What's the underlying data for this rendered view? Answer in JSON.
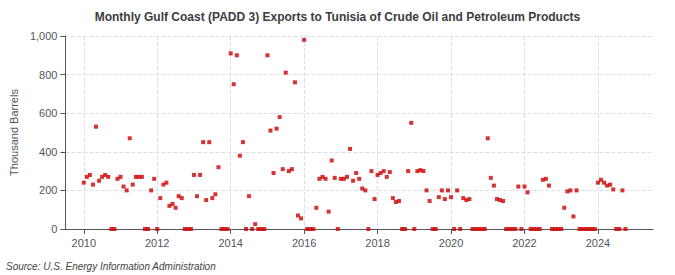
{
  "chart_data": {
    "type": "scatter",
    "title": "Monthly Gulf Coast (PADD 3) Exports to Tunisia of Crude Oil and Petroleum Products",
    "ylabel": "Thousand Barrels",
    "annotation": "Source: U.S. Energy Information Administration",
    "color": "#cc0000",
    "marker": "square",
    "grid": true,
    "ylim": [
      0,
      1000
    ],
    "yticks": [
      0,
      200,
      400,
      600,
      800,
      {
        "value": 1000,
        "label": "1,000"
      }
    ],
    "xlim": [
      2009.5,
      2025.5
    ],
    "xticks": [
      2010,
      2012,
      2014,
      2016,
      2018,
      2020,
      2022,
      2024
    ],
    "x": [
      2010.0,
      2010.083,
      2010.167,
      2010.25,
      2010.333,
      2010.417,
      2010.5,
      2010.583,
      2010.667,
      2010.75,
      2010.833,
      2010.917,
      2011.0,
      2011.083,
      2011.167,
      2011.25,
      2011.333,
      2011.417,
      2011.5,
      2011.583,
      2011.667,
      2011.75,
      2011.833,
      2011.917,
      2012.0,
      2012.083,
      2012.167,
      2012.25,
      2012.333,
      2012.417,
      2012.5,
      2012.583,
      2012.667,
      2012.75,
      2012.833,
      2012.917,
      2013.0,
      2013.083,
      2013.167,
      2013.25,
      2013.333,
      2013.417,
      2013.5,
      2013.583,
      2013.667,
      2013.75,
      2013.833,
      2013.917,
      2014.0,
      2014.083,
      2014.167,
      2014.25,
      2014.333,
      2014.417,
      2014.5,
      2014.583,
      2014.667,
      2014.75,
      2014.833,
      2014.917,
      2015.0,
      2015.083,
      2015.167,
      2015.25,
      2015.333,
      2015.417,
      2015.5,
      2015.583,
      2015.667,
      2015.75,
      2015.833,
      2015.917,
      2016.0,
      2016.083,
      2016.167,
      2016.25,
      2016.333,
      2016.417,
      2016.5,
      2016.583,
      2016.667,
      2016.75,
      2016.833,
      2016.917,
      2017.0,
      2017.083,
      2017.167,
      2017.25,
      2017.333,
      2017.417,
      2017.5,
      2017.583,
      2017.667,
      2017.75,
      2017.833,
      2017.917,
      2018.0,
      2018.083,
      2018.167,
      2018.25,
      2018.333,
      2018.417,
      2018.5,
      2018.583,
      2018.667,
      2018.75,
      2018.833,
      2018.917,
      2019.0,
      2019.083,
      2019.167,
      2019.25,
      2019.333,
      2019.417,
      2019.5,
      2019.583,
      2019.667,
      2019.75,
      2019.833,
      2019.917,
      2020.0,
      2020.083,
      2020.167,
      2020.25,
      2020.333,
      2020.417,
      2020.5,
      2020.583,
      2020.667,
      2020.75,
      2020.833,
      2020.917,
      2021.0,
      2021.083,
      2021.167,
      2021.25,
      2021.333,
      2021.417,
      2021.5,
      2021.583,
      2021.667,
      2021.75,
      2021.833,
      2021.917,
      2022.0,
      2022.083,
      2022.167,
      2022.25,
      2022.333,
      2022.417,
      2022.5,
      2022.583,
      2022.667,
      2022.75,
      2022.833,
      2022.917,
      2023.0,
      2023.083,
      2023.167,
      2023.25,
      2023.333,
      2023.417,
      2023.5,
      2023.583,
      2023.667,
      2023.75,
      2023.833,
      2023.917,
      2024.0,
      2024.083,
      2024.167,
      2024.25,
      2024.333,
      2024.417,
      2024.5,
      2024.583,
      2024.667,
      2024.75
    ],
    "values": [
      240,
      270,
      280,
      230,
      530,
      250,
      270,
      280,
      270,
      0,
      0,
      260,
      270,
      220,
      200,
      470,
      230,
      270,
      270,
      270,
      0,
      0,
      200,
      260,
      0,
      160,
      230,
      240,
      120,
      130,
      110,
      170,
      160,
      0,
      0,
      0,
      280,
      170,
      280,
      450,
      150,
      450,
      160,
      180,
      320,
      0,
      0,
      0,
      910,
      750,
      900,
      380,
      450,
      0,
      170,
      0,
      25,
      0,
      0,
      0,
      900,
      510,
      290,
      520,
      580,
      310,
      810,
      300,
      310,
      760,
      70,
      55,
      980,
      0,
      0,
      0,
      110,
      260,
      270,
      260,
      90,
      355,
      265,
      0,
      260,
      260,
      270,
      415,
      250,
      290,
      260,
      210,
      200,
      0,
      300,
      155,
      280,
      290,
      300,
      270,
      295,
      160,
      140,
      145,
      0,
      0,
      300,
      550,
      0,
      300,
      305,
      300,
      200,
      145,
      0,
      0,
      165,
      200,
      155,
      200,
      165,
      0,
      200,
      0,
      160,
      150,
      155,
      0,
      0,
      0,
      0,
      0,
      470,
      265,
      225,
      155,
      150,
      145,
      0,
      0,
      0,
      0,
      220,
      0,
      220,
      190,
      0,
      0,
      0,
      0,
      255,
      260,
      225,
      0,
      0,
      0,
      0,
      110,
      195,
      200,
      65,
      200,
      0,
      0,
      0,
      0,
      0,
      0,
      240,
      255,
      240,
      225,
      230,
      205,
      0,
      0,
      200,
      0
    ]
  }
}
